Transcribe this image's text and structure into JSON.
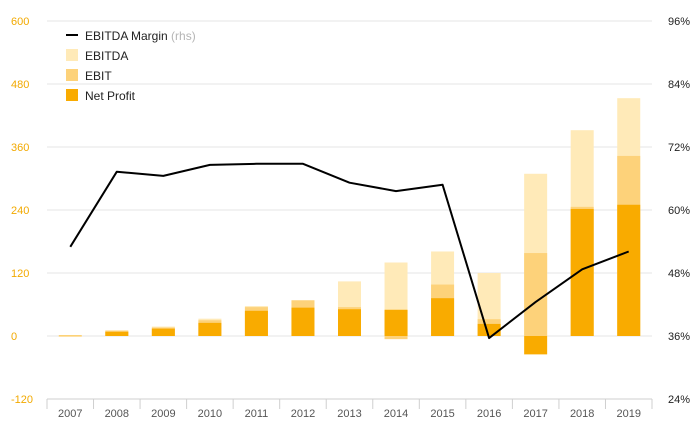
{
  "chart_data": {
    "type": "bar",
    "categories": [
      "2007",
      "2008",
      "2009",
      "2010",
      "2011",
      "2012",
      "2013",
      "2014",
      "2015",
      "2016",
      "2017",
      "2018",
      "2019"
    ],
    "series": [
      {
        "name": "EBITDA",
        "values": [
          1,
          11,
          18,
          33,
          57,
          68,
          104,
          140,
          161,
          120,
          309,
          392,
          453
        ],
        "color": "#ffeab8"
      },
      {
        "name": "EBIT",
        "values": [
          0,
          10,
          16,
          30,
          55,
          68,
          55,
          49,
          98,
          32,
          158,
          246,
          343
        ],
        "color": "#fdd27a"
      },
      {
        "name": "Net Profit",
        "values": [
          1,
          8,
          14,
          25,
          48,
          54,
          51,
          50,
          72,
          23,
          -35,
          242,
          250
        ],
        "color": "#f9ab00"
      },
      {
        "name": "EBITDA Margin",
        "values": [
          53,
          67.3,
          66.5,
          68.6,
          68.8,
          68.8,
          65.2,
          63.6,
          64.8,
          35.6,
          42.5,
          48.7,
          52.1
        ],
        "axis": "right",
        "color": "#000000"
      }
    ],
    "ebit_negative_2014": -6,
    "y_left": {
      "min": -120,
      "max": 600,
      "ticks": [
        -120,
        0,
        120,
        240,
        360,
        480,
        600
      ]
    },
    "y_right": {
      "min": 24,
      "max": 96,
      "ticks": [
        "24%",
        "36%",
        "48%",
        "60%",
        "72%",
        "84%",
        "96%"
      ]
    },
    "legend": {
      "placement": "top-left",
      "items": [
        {
          "label": "EBITDA Margin",
          "suffix": " (rhs)",
          "kind": "line",
          "color": "#000000"
        },
        {
          "label": "EBITDA",
          "suffix": "",
          "kind": "box",
          "color": "#ffeab8"
        },
        {
          "label": "EBIT",
          "suffix": "",
          "kind": "box",
          "color": "#fdd27a"
        },
        {
          "label": "Net Profit",
          "suffix": "",
          "kind": "box",
          "color": "#f9ab00"
        }
      ]
    }
  }
}
